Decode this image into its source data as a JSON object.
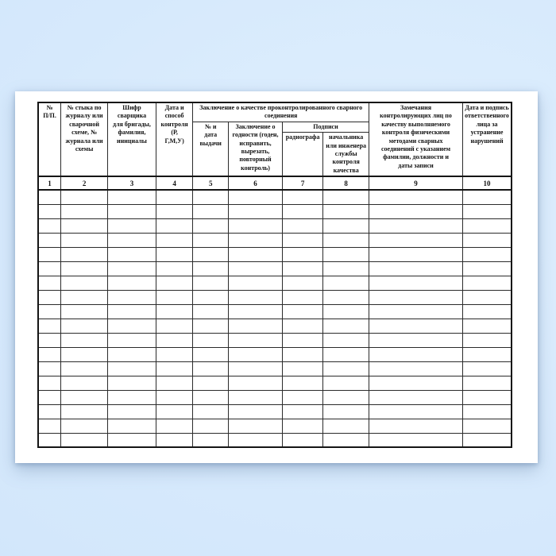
{
  "colors": {
    "background": "#d6e9fc",
    "paper": "#ffffff",
    "table_border": "#151515",
    "text": "#111111"
  },
  "table": {
    "group_headers": {
      "conclusion": "Заключение о качестве проконтролированного сварного соединения",
      "signatures": "Подписи"
    },
    "columns": [
      {
        "num": "1",
        "label": "№\nП/П."
      },
      {
        "num": "2",
        "label": "№ стыка по\nжурналу или\nсварочной\nсхеме, №\nжурнала или\nсхемы"
      },
      {
        "num": "3",
        "label": "Шифр\nсварщика\nдля бригады,\nфамилия,\nинициалы"
      },
      {
        "num": "4",
        "label": "Дата и\nспособ\nконтроля\n(Р,\nГ,М,У)"
      },
      {
        "num": "5",
        "label": "№ и\nдата\nвыдачи"
      },
      {
        "num": "6",
        "label": "Заключение о\nгодности (годен,\nисправить,\nвырезать,\nповторный\nконтроль)"
      },
      {
        "num": "7",
        "label": "радиографа"
      },
      {
        "num": "8",
        "label": "начальника\nили инженера\nслужбы\nконтроля\nкачества"
      },
      {
        "num": "9",
        "label": "Замечания\nконтролирующих лиц по\nкачеству выполняемого\nконтроля физическими\nметодами сварных\nсоединений с указанием\nфамилии, должности и\nдаты записи"
      },
      {
        "num": "10",
        "label": "Дата и подпись\nответственного\nлица за\nустранение\nнарушений"
      }
    ],
    "empty_row_count": 18
  }
}
